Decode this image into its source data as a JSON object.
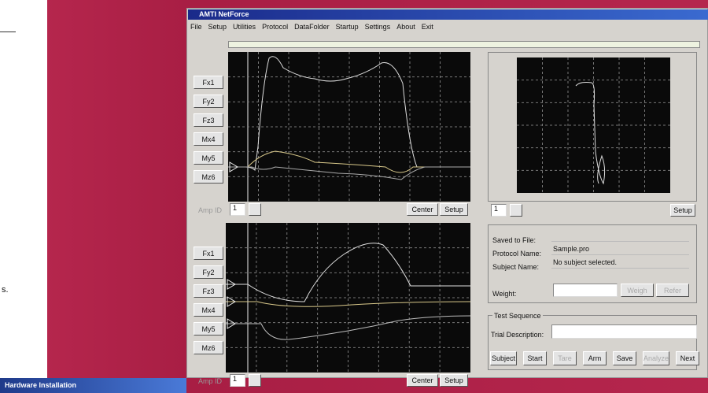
{
  "window": {
    "title": "AMTI NetForce",
    "menu": [
      "File",
      "Setup",
      "Utilities",
      "Protocol",
      "DataFolder",
      "Startup",
      "Settings",
      "About",
      "Exit"
    ]
  },
  "top_panel": {
    "channels": [
      "Fx1",
      "Fy2",
      "Fz3",
      "Mx4",
      "My5",
      "Mz6"
    ],
    "amp_label": "Amp ID",
    "amp_value": "1",
    "buttons": [
      "Center",
      "Setup"
    ]
  },
  "bottom_panel": {
    "channels": [
      "Fx1",
      "Fy2",
      "Fz3",
      "Mx4",
      "My5",
      "Mz6"
    ],
    "amp_label": "Amp ID",
    "amp_value": "1",
    "buttons": [
      "Center",
      "Setup"
    ]
  },
  "cop_panel": {
    "amp_value": "1",
    "button": "Setup"
  },
  "info": {
    "saved_to_file_label": "Saved to File:",
    "protocol_name_label": "Protocol Name:",
    "protocol_name": "Sample.pro",
    "subject_name_label": "Subject Name:",
    "subject_name": "No subject selected.",
    "weight_label": "Weight:",
    "buttons": [
      "Weigh",
      "Refer"
    ]
  },
  "test_sequence": {
    "title": "Test Sequence",
    "trial_description_label": "Trial Description:",
    "buttons": [
      "Subject",
      "Start",
      "Tare",
      "Arm",
      "Save",
      "Analyze",
      "Next"
    ]
  },
  "taskbar": {
    "title": "Hardware Installation"
  },
  "background": {
    "fragment": "s."
  }
}
